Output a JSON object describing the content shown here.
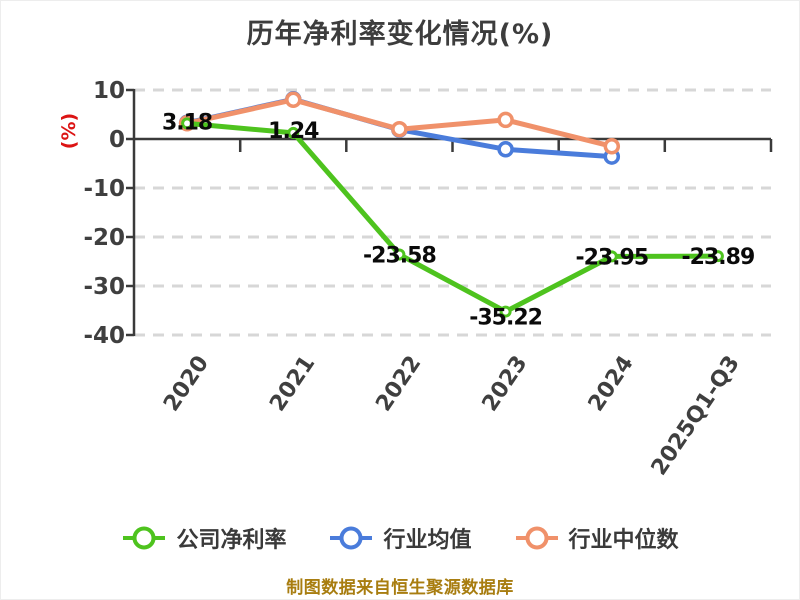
{
  "chart_data": {
    "type": "line",
    "title": "历年净利率变化情况(%)",
    "ylabel": "(%)",
    "ylabel_color": "#dc1414",
    "categories": [
      "2020",
      "2021",
      "2022",
      "2023",
      "2024",
      "2025Q1-Q3"
    ],
    "yticks": [
      10,
      0,
      -10,
      -20,
      -30,
      -40
    ],
    "ylim": [
      -40,
      10
    ],
    "grid": "horizontal-dashed",
    "legend_position": "bottom",
    "background": "#ffffff",
    "series": [
      {
        "id": "company-net-margin",
        "name": "公司净利率",
        "color": "#4ec31e",
        "marker": "circle",
        "labeled": true,
        "values": [
          3.18,
          1.24,
          -23.58,
          -35.22,
          -23.95,
          -23.89
        ],
        "labels": [
          "3.18",
          "1.24",
          "-23.58",
          "-35.22",
          "-23.95",
          "-23.89"
        ]
      },
      {
        "id": "industry-average",
        "name": "行业均值",
        "color": "#4a7cdb",
        "marker": "circle",
        "labeled": false,
        "values": [
          3.3,
          8.1,
          1.9,
          -2.1,
          -3.6,
          null
        ]
      },
      {
        "id": "industry-median",
        "name": "行业中位数",
        "color": "#f0916a",
        "marker": "circle",
        "labeled": false,
        "values": [
          3.2,
          8.0,
          2.0,
          3.9,
          -1.5,
          null
        ]
      }
    ]
  },
  "footer": {
    "source_text": "制图数据来自恒生聚源数据库"
  }
}
